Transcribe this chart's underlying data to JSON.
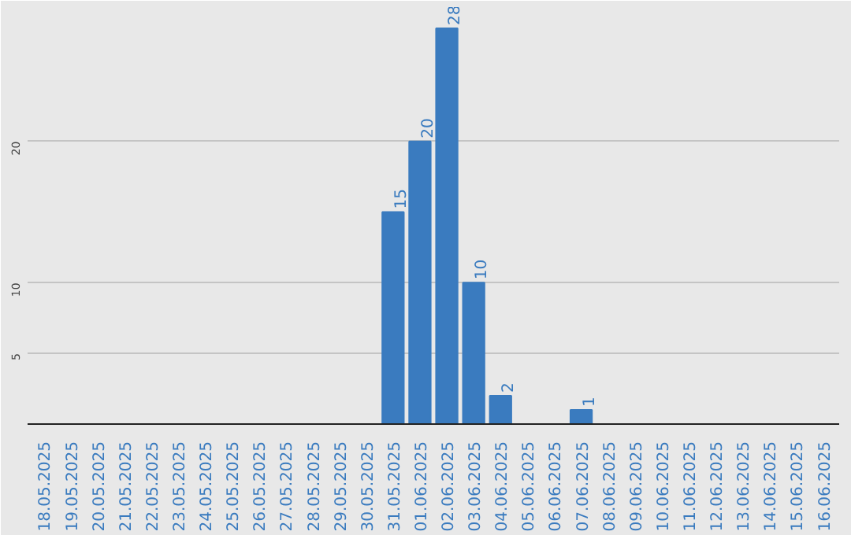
{
  "chart_data": {
    "type": "bar",
    "categories": [
      "18.05.2025",
      "19.05.2025",
      "20.05.2025",
      "21.05.2025",
      "22.05.2025",
      "23.05.2025",
      "24.05.2025",
      "25.05.2025",
      "26.05.2025",
      "27.05.2025",
      "28.05.2025",
      "29.05.2025",
      "30.05.2025",
      "31.05.2025",
      "01.06.2025",
      "02.06.2025",
      "03.06.2025",
      "04.06.2025",
      "05.06.2025",
      "06.06.2025",
      "07.06.2025",
      "08.06.2025",
      "09.06.2025",
      "10.06.2025",
      "11.06.2025",
      "12.06.2025",
      "13.06.2025",
      "14.06.2025",
      "15.06.2025",
      "16.06.2025"
    ],
    "values": [
      0,
      0,
      0,
      0,
      0,
      0,
      0,
      0,
      0,
      0,
      0,
      0,
      0,
      15,
      20,
      28,
      10,
      2,
      0,
      0,
      1,
      0,
      0,
      0,
      0,
      0,
      0,
      0,
      0,
      0
    ],
    "value_labels": [
      null,
      null,
      null,
      null,
      null,
      null,
      null,
      null,
      null,
      null,
      null,
      null,
      null,
      "15",
      "20",
      "28",
      "10",
      "2",
      null,
      null,
      "1",
      null,
      null,
      null,
      null,
      null,
      null,
      null,
      null,
      null
    ],
    "color": "#3a7bbf",
    "ylim": [
      0,
      29.5
    ],
    "yticks": [
      5,
      10,
      20
    ],
    "grid": "y"
  }
}
